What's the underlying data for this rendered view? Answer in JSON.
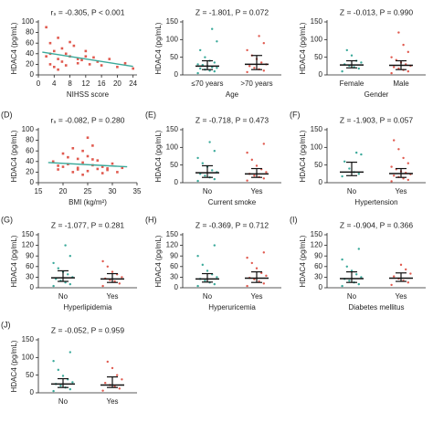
{
  "chart_data": [
    {
      "type": "scatter",
      "annotation": "rₛ = -0.305, P < 0.001",
      "ylabel": "HDAC4 (pg/mL)",
      "xlabel": "NIHSS score",
      "color": "#e05a4f",
      "xlim": [
        0,
        25
      ],
      "xticks": [
        0,
        4,
        8,
        12,
        16,
        20,
        24
      ],
      "ylim": [
        0,
        100
      ],
      "yticks": [
        0,
        20,
        40,
        60,
        80,
        100
      ],
      "x": [
        2,
        2,
        3,
        3,
        4,
        4,
        5,
        5,
        6,
        6,
        7,
        7,
        8,
        9,
        10,
        10,
        11,
        12,
        13,
        14,
        15,
        16,
        18,
        20,
        22,
        24,
        3,
        5,
        8,
        12
      ],
      "y": [
        90,
        35,
        60,
        20,
        45,
        15,
        30,
        70,
        25,
        50,
        40,
        18,
        35,
        55,
        22,
        30,
        28,
        45,
        20,
        33,
        25,
        18,
        30,
        15,
        22,
        12,
        40,
        10,
        62,
        35
      ],
      "trend": {
        "color": "#3aa99a",
        "x": [
          1,
          24
        ],
        "y": [
          43,
          16
        ]
      }
    },
    {
      "type": "strip",
      "annotation": "Z = -1.801, P = 0.072",
      "ylabel": "HDAC4 (pg/mL)",
      "xlabel": "Age",
      "categories": [
        "≤70 years",
        ">70 years"
      ],
      "ylim": [
        0,
        150
      ],
      "yticks": [
        0,
        50,
        100,
        150
      ],
      "series": [
        {
          "color": "#3aa99a",
          "median": 25,
          "q1": 15,
          "q3": 40,
          "values": [
            5,
            10,
            12,
            15,
            18,
            20,
            22,
            25,
            28,
            30,
            35,
            40,
            50,
            70,
            95,
            130
          ]
        },
        {
          "color": "#e05a4f",
          "median": 30,
          "q1": 15,
          "q3": 55,
          "values": [
            8,
            12,
            16,
            20,
            25,
            30,
            35,
            45,
            55,
            70,
            90,
            110
          ]
        }
      ]
    },
    {
      "type": "strip",
      "annotation": "Z = -0.013, P = 0.990",
      "ylabel": "HDAC4 (pg/mL)",
      "xlabel": "Gender",
      "categories": [
        "Female",
        "Male"
      ],
      "ylim": [
        0,
        150
      ],
      "yticks": [
        0,
        50,
        100,
        150
      ],
      "series": [
        {
          "color": "#3aa99a",
          "median": 28,
          "q1": 20,
          "q3": 40,
          "values": [
            10,
            18,
            22,
            26,
            30,
            35,
            40,
            55,
            70
          ]
        },
        {
          "color": "#e05a4f",
          "median": 27,
          "q1": 15,
          "q3": 40,
          "values": [
            5,
            10,
            14,
            18,
            22,
            26,
            30,
            35,
            42,
            50,
            65,
            85,
            120
          ]
        }
      ]
    },
    {
      "type": "scatter",
      "label": "(D)",
      "annotation": "rₛ = -0.082, P = 0.280",
      "ylabel": "HDAC4 (pg/mL)",
      "xlabel": "BMI (kg/m²)",
      "color": "#e05a4f",
      "xlim": [
        15,
        35
      ],
      "xticks": [
        15,
        20,
        25,
        30,
        35
      ],
      "ylim": [
        0,
        100
      ],
      "yticks": [
        0,
        20,
        40,
        60,
        80,
        100
      ],
      "x": [
        18,
        19,
        20,
        20,
        21,
        22,
        22,
        23,
        23,
        24,
        24,
        25,
        25,
        26,
        26,
        27,
        27,
        28,
        29,
        30,
        31,
        32,
        21,
        24,
        28,
        19,
        23,
        26,
        25,
        29
      ],
      "y": [
        40,
        25,
        55,
        30,
        35,
        20,
        65,
        28,
        45,
        38,
        15,
        50,
        22,
        33,
        70,
        26,
        42,
        30,
        24,
        36,
        20,
        28,
        48,
        60,
        18,
        32,
        25,
        44,
        85,
        27
      ],
      "trend": {
        "color": "#3aa99a",
        "x": [
          17,
          33
        ],
        "y": [
          38,
          30
        ]
      }
    },
    {
      "type": "strip",
      "label": "(E)",
      "annotation": "Z = -0.718, P = 0.473",
      "ylabel": "HDAC4 (pg/mL)",
      "xlabel": "Current smoke",
      "categories": [
        "No",
        "Yes"
      ],
      "ylim": [
        0,
        150
      ],
      "yticks": [
        0,
        50,
        100,
        150
      ],
      "series": [
        {
          "color": "#3aa99a",
          "median": 28,
          "q1": 15,
          "q3": 48,
          "values": [
            5,
            10,
            15,
            20,
            25,
            30,
            35,
            45,
            55,
            70,
            90,
            115
          ]
        },
        {
          "color": "#e05a4f",
          "median": 25,
          "q1": 15,
          "q3": 40,
          "values": [
            6,
            12,
            16,
            20,
            25,
            30,
            38,
            48,
            65,
            85,
            110
          ]
        }
      ]
    },
    {
      "type": "strip",
      "label": "(F)",
      "annotation": "Z = -1.903, P = 0.057",
      "ylabel": "HDAC4 (pg/mL)",
      "xlabel": "Hypertension",
      "categories": [
        "No",
        "Yes"
      ],
      "ylim": [
        0,
        150
      ],
      "yticks": [
        0,
        50,
        100,
        150
      ],
      "series": [
        {
          "color": "#3aa99a",
          "median": 30,
          "q1": 20,
          "q3": 58,
          "values": [
            18,
            25,
            30,
            40,
            60,
            80,
            85
          ]
        },
        {
          "color": "#e05a4f",
          "median": 26,
          "q1": 15,
          "q3": 40,
          "values": [
            4,
            8,
            12,
            16,
            20,
            24,
            28,
            32,
            38,
            45,
            55,
            70,
            95,
            120
          ]
        }
      ]
    },
    {
      "type": "strip",
      "label": "(G)",
      "annotation": "Z = -1.077, P = 0.281",
      "ylabel": "HDAC4 (pg/mL)",
      "xlabel": "Hyperlipidemia",
      "categories": [
        "No",
        "Yes"
      ],
      "ylim": [
        0,
        150
      ],
      "yticks": [
        0,
        30,
        60,
        90,
        120,
        150
      ],
      "series": [
        {
          "color": "#3aa99a",
          "median": 28,
          "q1": 18,
          "q3": 48,
          "values": [
            5,
            10,
            15,
            20,
            25,
            30,
            38,
            45,
            55,
            70,
            90,
            120
          ]
        },
        {
          "color": "#e05a4f",
          "median": 25,
          "q1": 15,
          "q3": 40,
          "values": [
            5,
            12,
            18,
            22,
            26,
            30,
            38,
            45,
            60,
            75
          ]
        }
      ]
    },
    {
      "type": "strip",
      "label": "(H)",
      "annotation": "Z = -0.369, P = 0.712",
      "ylabel": "HDAC4 (pg/mL)",
      "xlabel": "Hyperuricemia",
      "categories": [
        "No",
        "Yes"
      ],
      "ylim": [
        0,
        150
      ],
      "yticks": [
        0,
        30,
        60,
        90,
        120,
        150
      ],
      "series": [
        {
          "color": "#3aa99a",
          "median": 25,
          "q1": 16,
          "q3": 40,
          "values": [
            5,
            10,
            15,
            20,
            25,
            30,
            38,
            48,
            65,
            90,
            120
          ]
        },
        {
          "color": "#e05a4f",
          "median": 27,
          "q1": 15,
          "q3": 45,
          "values": [
            5,
            12,
            18,
            24,
            28,
            34,
            42,
            55,
            70,
            85,
            100
          ]
        }
      ]
    },
    {
      "type": "strip",
      "label": "(I)",
      "annotation": "Z = -0.904, P = 0.366",
      "ylabel": "HDAC4 (pg/mL)",
      "xlabel": "Diabetes mellitus",
      "categories": [
        "No",
        "Yes"
      ],
      "ylim": [
        0,
        150
      ],
      "yticks": [
        0,
        30,
        60,
        90,
        120,
        150
      ],
      "series": [
        {
          "color": "#3aa99a",
          "median": 26,
          "q1": 15,
          "q3": 45,
          "values": [
            5,
            10,
            15,
            20,
            25,
            30,
            38,
            48,
            60,
            80,
            110
          ]
        },
        {
          "color": "#e05a4f",
          "median": 27,
          "q1": 18,
          "q3": 42,
          "values": [
            8,
            15,
            20,
            26,
            32,
            40,
            52,
            65
          ]
        }
      ]
    },
    {
      "type": "strip",
      "label": "(J)",
      "annotation": "Z = -0.052, P = 0.959",
      "ylabel": "HDAC4 (pg/mL)",
      "categories": [
        "No",
        "Yes"
      ],
      "ylim": [
        0,
        150
      ],
      "yticks": [
        0,
        50,
        100,
        150
      ],
      "series": [
        {
          "color": "#3aa99a",
          "median": 25,
          "q1": 15,
          "q3": 40,
          "values": [
            5,
            10,
            15,
            20,
            25,
            30,
            38,
            48,
            65,
            90,
            115
          ]
        },
        {
          "color": "#e05a4f",
          "median": 22,
          "q1": 15,
          "q3": 45,
          "values": [
            6,
            12,
            18,
            22,
            28,
            38,
            50,
            70,
            88
          ]
        }
      ]
    }
  ]
}
